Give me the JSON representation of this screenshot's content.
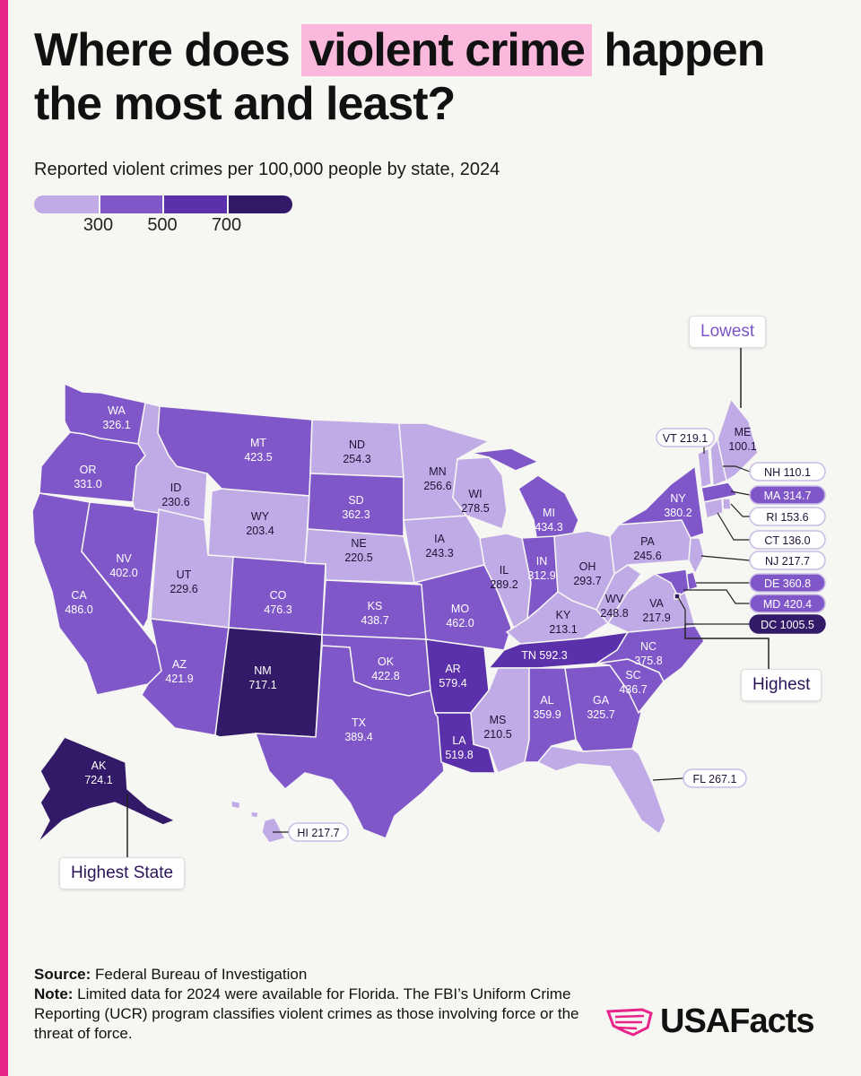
{
  "title": {
    "before": "Where does ",
    "highlight": "violent crime",
    "after": " happen the most and least?"
  },
  "subtitle": "Reported violent crimes per 100,000 people by state, 2024",
  "legend": {
    "ticks": [
      "300",
      "500",
      "700"
    ],
    "colors": [
      "#c1abe6",
      "#8057c9",
      "#5a31aa",
      "#331a68"
    ]
  },
  "map_data": {
    "states": [
      {
        "id": "WA",
        "label": "WA",
        "value": "326.1"
      },
      {
        "id": "OR",
        "label": "OR",
        "value": "331.0"
      },
      {
        "id": "CA",
        "label": "CA",
        "value": "486.0"
      },
      {
        "id": "NV",
        "label": "NV",
        "value": "402.0"
      },
      {
        "id": "ID",
        "label": "ID",
        "value": "230.6"
      },
      {
        "id": "MT",
        "label": "MT",
        "value": "423.5"
      },
      {
        "id": "WY",
        "label": "WY",
        "value": "203.4"
      },
      {
        "id": "UT",
        "label": "UT",
        "value": "229.6"
      },
      {
        "id": "AZ",
        "label": "AZ",
        "value": "421.9"
      },
      {
        "id": "CO",
        "label": "CO",
        "value": "476.3"
      },
      {
        "id": "NM",
        "label": "NM",
        "value": "717.1"
      },
      {
        "id": "ND",
        "label": "ND",
        "value": "254.3"
      },
      {
        "id": "SD",
        "label": "SD",
        "value": "362.3"
      },
      {
        "id": "NE",
        "label": "NE",
        "value": "220.5"
      },
      {
        "id": "KS",
        "label": "KS",
        "value": "438.7"
      },
      {
        "id": "OK",
        "label": "OK",
        "value": "422.8"
      },
      {
        "id": "TX",
        "label": "TX",
        "value": "389.4"
      },
      {
        "id": "MN",
        "label": "MN",
        "value": "256.6"
      },
      {
        "id": "IA",
        "label": "IA",
        "value": "243.3"
      },
      {
        "id": "MO",
        "label": "MO",
        "value": "462.0"
      },
      {
        "id": "AR",
        "label": "AR",
        "value": "579.4"
      },
      {
        "id": "LA",
        "label": "LA",
        "value": "519.8"
      },
      {
        "id": "WI",
        "label": "WI",
        "value": "278.5"
      },
      {
        "id": "IL",
        "label": "IL",
        "value": "289.2"
      },
      {
        "id": "MI",
        "label": "MI",
        "value": "434.3"
      },
      {
        "id": "IN",
        "label": "IN",
        "value": "312.9"
      },
      {
        "id": "OH",
        "label": "OH",
        "value": "293.7"
      },
      {
        "id": "KY",
        "label": "KY",
        "value": "213.1"
      },
      {
        "id": "TN",
        "label": "TN",
        "value": "592.3"
      },
      {
        "id": "MS",
        "label": "MS",
        "value": "210.5"
      },
      {
        "id": "AL",
        "label": "AL",
        "value": "359.9"
      },
      {
        "id": "GA",
        "label": "GA",
        "value": "325.7"
      },
      {
        "id": "FL",
        "label": "FL",
        "value": "267.1"
      },
      {
        "id": "SC",
        "label": "SC",
        "value": "436.7"
      },
      {
        "id": "NC",
        "label": "NC",
        "value": "375.8"
      },
      {
        "id": "VA",
        "label": "VA",
        "value": "217.9"
      },
      {
        "id": "WV",
        "label": "WV",
        "value": "248.8"
      },
      {
        "id": "PA",
        "label": "PA",
        "value": "245.6"
      },
      {
        "id": "NY",
        "label": "NY",
        "value": "380.2"
      },
      {
        "id": "VT",
        "label": "VT",
        "value": "219.1"
      },
      {
        "id": "NH",
        "label": "NH",
        "value": "110.1"
      },
      {
        "id": "ME",
        "label": "ME",
        "value": "100.1"
      },
      {
        "id": "MA",
        "label": "MA",
        "value": "314.7"
      },
      {
        "id": "RI",
        "label": "RI",
        "value": "153.6"
      },
      {
        "id": "CT",
        "label": "CT",
        "value": "136.0"
      },
      {
        "id": "NJ",
        "label": "NJ",
        "value": "217.7"
      },
      {
        "id": "DE",
        "label": "DE",
        "value": "360.8"
      },
      {
        "id": "MD",
        "label": "MD",
        "value": "420.4"
      },
      {
        "id": "DC",
        "label": "DC",
        "value": "1005.5"
      },
      {
        "id": "AK",
        "label": "AK",
        "value": "724.1"
      },
      {
        "id": "HI",
        "label": "HI",
        "value": "217.7"
      }
    ]
  },
  "tags": {
    "lowest": "Lowest",
    "highest": "Highest",
    "highest_state": "Highest State"
  },
  "footer": {
    "source_label": "Source:",
    "source_text": " Federal Bureau of Investigation",
    "note_label": "Note:",
    "note_text": " Limited data for 2024 were available for Florida. The FBI’s Uniform Crime Reporting (UCR) program classifies violent crimes as those involving force or the threat of force."
  },
  "logo": {
    "text": "USAFacts",
    "icon": "us-map-flag-icon",
    "color": "#e8238a"
  }
}
